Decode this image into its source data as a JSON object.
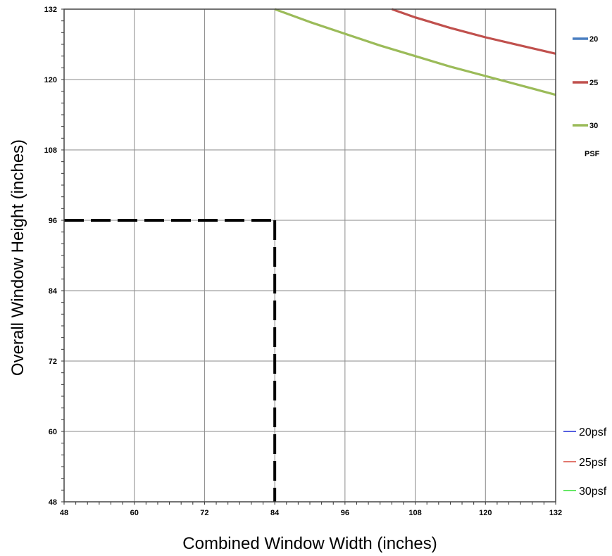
{
  "chart_data": {
    "type": "line",
    "xlabel": "Combined Window Width (inches)",
    "ylabel": "Overall Window Height (inches)",
    "xlim": [
      48,
      132
    ],
    "ylim": [
      48,
      132
    ],
    "xticks": [
      "48",
      "60",
      "72",
      "84",
      "96",
      "108",
      "120",
      "132"
    ],
    "yticks": [
      "48",
      "60",
      "72",
      "84",
      "96",
      "108",
      "120",
      "132"
    ],
    "grid": true,
    "series": [
      {
        "name": "20",
        "color": "#4a7fc1",
        "points": []
      },
      {
        "name": "25",
        "color": "#c0504d",
        "points": [
          [
            104,
            132
          ],
          [
            108,
            130.6
          ],
          [
            114,
            128.8
          ],
          [
            120,
            127.2
          ],
          [
            126,
            125.8
          ],
          [
            132,
            124.4
          ]
        ]
      },
      {
        "name": "30",
        "color": "#9bbb59",
        "points": [
          [
            84,
            132
          ],
          [
            90,
            129.8
          ],
          [
            96,
            127.8
          ],
          [
            102,
            125.8
          ],
          [
            108,
            124
          ],
          [
            114,
            122.2
          ],
          [
            120,
            120.6
          ],
          [
            126,
            119
          ],
          [
            132,
            117.4
          ]
        ]
      }
    ],
    "reference_lines": {
      "x": 84,
      "y": 96,
      "style": "dashed",
      "color": "#000000"
    },
    "legend_top": {
      "placement": "top-right",
      "entries": [
        "20",
        "25",
        "30"
      ],
      "footer": "PSF"
    },
    "legend_bottom": {
      "placement": "bottom-right",
      "entries": [
        {
          "label": "20psf",
          "color": "#1f2bd6"
        },
        {
          "label": "25psf",
          "color": "#d94a3f"
        },
        {
          "label": "30psf",
          "color": "#33e033"
        }
      ]
    }
  }
}
